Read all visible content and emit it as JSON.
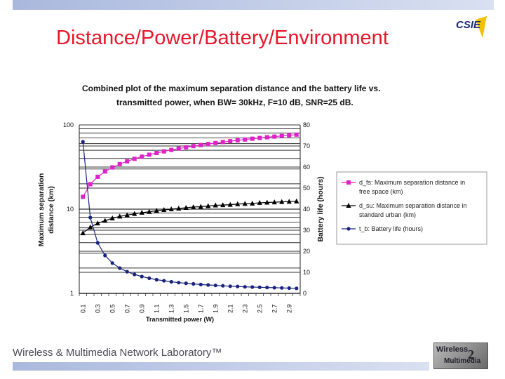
{
  "slide": {
    "title": "Distance/Power/Battery/Environment",
    "footer": "Wireless & Multimedia Network Laboratory™",
    "logo_top_text": "CSIE",
    "logo_bottom_line1": "Wireless",
    "logo_bottom_line2": "Multimedia",
    "logo_bottom_mark": "2"
  },
  "chart_data": {
    "type": "line",
    "title_line1": "Combined plot of the maximum separation distance and the battery life vs.",
    "title_line2": "transmitted power, when BW= 30kHz, F=10 dB, SNR=25 dB.",
    "xlabel": "Transmitted power (W)",
    "ylabel_left_line1": "Maximum separation",
    "ylabel_left_line2": "distance (km)",
    "ylabel_right": "Battery life (hours)",
    "x": [
      0.1,
      0.2,
      0.3,
      0.4,
      0.5,
      0.6,
      0.7,
      0.8,
      0.9,
      1.0,
      1.1,
      1.2,
      1.3,
      1.4,
      1.5,
      1.6,
      1.7,
      1.8,
      1.9,
      2.0,
      2.1,
      2.2,
      2.3,
      2.4,
      2.5,
      2.6,
      2.7,
      2.8,
      2.9,
      3.0
    ],
    "x_tick_labels": [
      "0.1",
      "0.3",
      "0.5",
      "0.7",
      "0.9",
      "1.1",
      "1.3",
      "1.5",
      "1.7",
      "1.9",
      "2.1",
      "2.3",
      "2.5",
      "2.7",
      "2.9"
    ],
    "left_axis": {
      "scale": "log",
      "range": [
        1,
        100
      ],
      "ticks": [
        "1",
        "10",
        "100"
      ]
    },
    "right_axis": {
      "scale": "linear",
      "range": [
        0,
        80
      ],
      "ticks": [
        "0",
        "10",
        "20",
        "30",
        "40",
        "50",
        "60",
        "70",
        "80"
      ]
    },
    "grid": true,
    "legend_position": "right",
    "series": [
      {
        "name_line1": "d_fs: Maximum separation distance in",
        "name_line2": "free space (km)",
        "axis": "left",
        "color": "#e020c8",
        "marker": "square",
        "values": [
          14.0,
          19.8,
          24.2,
          28.0,
          31.3,
          34.3,
          37.0,
          39.6,
          42.0,
          44.3,
          46.4,
          48.5,
          50.5,
          52.4,
          54.2,
          56.0,
          57.7,
          59.4,
          61.0,
          62.6,
          64.2,
          65.7,
          67.1,
          68.6,
          70.0,
          71.4,
          72.7,
          74.1,
          75.4,
          76.7
        ]
      },
      {
        "name_line1": "d_su: Maximum separation distance in",
        "name_line2": "standard urban (km)",
        "axis": "left",
        "color": "#000000",
        "marker": "triangle",
        "values": [
          5.2,
          6.1,
          6.8,
          7.3,
          7.8,
          8.2,
          8.5,
          8.8,
          9.1,
          9.3,
          9.6,
          9.8,
          10.0,
          10.2,
          10.4,
          10.6,
          10.7,
          10.9,
          11.1,
          11.2,
          11.3,
          11.5,
          11.6,
          11.7,
          11.9,
          12.0,
          12.1,
          12.2,
          12.3,
          12.4
        ]
      },
      {
        "name_line1": "t_b: Battery life (hours)",
        "name_line2": "",
        "axis": "right",
        "color": "#1a237e",
        "marker": "circle",
        "values": [
          72.0,
          36.0,
          24.0,
          18.0,
          14.4,
          12.0,
          10.3,
          9.0,
          8.0,
          7.2,
          6.5,
          6.0,
          5.5,
          5.1,
          4.8,
          4.5,
          4.2,
          4.0,
          3.8,
          3.6,
          3.4,
          3.3,
          3.1,
          3.0,
          2.9,
          2.8,
          2.7,
          2.6,
          2.5,
          2.4
        ]
      }
    ]
  }
}
